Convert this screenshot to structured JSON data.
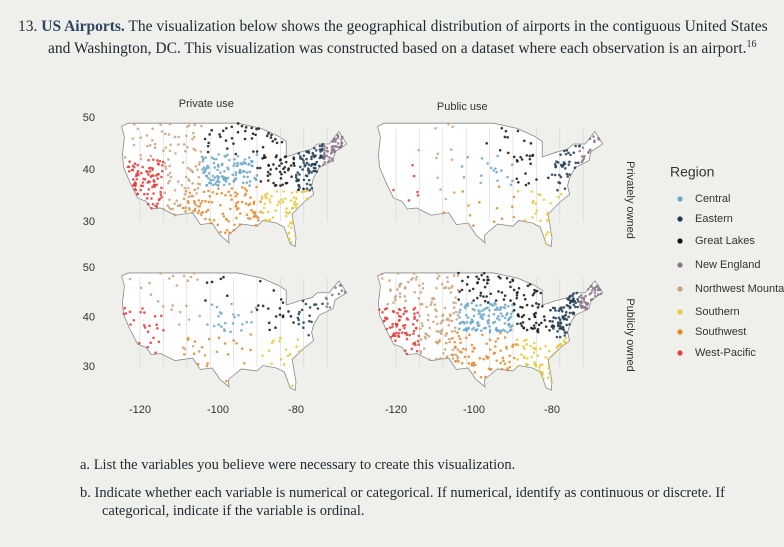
{
  "problem": {
    "number": "13.",
    "title": "US Airports.",
    "text": "The visualization below shows the geographical distribution of airports in the contiguous United States and Washington, DC. This visualization was constructed based on a dataset where each observation is an airport.",
    "footnote": "16"
  },
  "figure": {
    "columns": [
      "Private use",
      "Public use"
    ],
    "rows": [
      "Privately owned",
      "Publicly owned"
    ],
    "yticks": [
      50,
      40,
      30
    ],
    "xticks": [
      -120,
      -100,
      -80
    ],
    "legend": {
      "title": "Region",
      "items": [
        {
          "label": "Central",
          "color": "#6aa6c8"
        },
        {
          "label": "Eastern",
          "color": "#1d3b4f"
        },
        {
          "label": "Great Lakes",
          "color": "#141414"
        },
        {
          "label": "New England",
          "color": "#8a7488"
        },
        {
          "label": "Northwest Mountain",
          "color": "#c9a27a"
        },
        {
          "label": "Southern",
          "color": "#e8c83a"
        },
        {
          "label": "Southwest",
          "color": "#e3892a"
        },
        {
          "label": "West-Pacific",
          "color": "#e23a36"
        }
      ]
    }
  },
  "questions": [
    {
      "label": "a.",
      "text": "List the variables you believe were necessary to create this visualization."
    },
    {
      "label": "b.",
      "text": "Indicate whether each variable is numerical or categorical. If numerical, identify as continuous or discrete. If categorical, indicate if the variable is ordinal."
    }
  ]
}
